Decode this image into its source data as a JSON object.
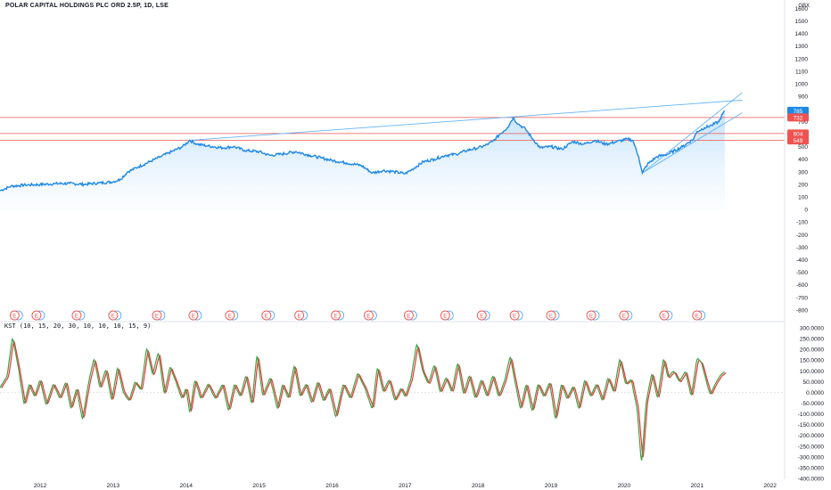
{
  "header": {
    "title": "POLAR CAPITAL HOLDINGS PLC ORD 2.5P, 1D, LSE",
    "currency": "GBX"
  },
  "indicator": {
    "label": "KST (10, 15, 20, 30, 10, 10, 10, 15, 9)"
  },
  "colors": {
    "price_line": "#1e88e5",
    "area_fill_top": "#bbdefb",
    "resistance_lines": "#ef5350",
    "trend_lines": "#64b5f6",
    "kst_line": "#43a047",
    "kst_signal": "#e53935",
    "earnings_badge": "#ef5350",
    "earnings_badge_alt": "#42a5f5",
    "axis_text": "#131722"
  },
  "chart_data": [
    {
      "type": "line",
      "name": "price",
      "x_axis": {
        "tick_labels": [
          "2012",
          "2013",
          "2014",
          "2015",
          "2016",
          "2017",
          "2018",
          "2019",
          "2020",
          "2021",
          "2022"
        ],
        "range": [
          2011.45,
          2022.2
        ]
      },
      "y_axis": {
        "ticks": [
          -800,
          -700,
          -600,
          -500,
          -400,
          -300,
          -200,
          -100,
          0,
          100,
          200,
          300,
          400,
          500,
          600,
          700,
          800,
          900,
          1000,
          1100,
          1200,
          1300,
          1400,
          1500,
          1600
        ],
        "range": [
          -850,
          1610
        ]
      },
      "points": [
        [
          2011.45,
          150
        ],
        [
          2011.6,
          185
        ],
        [
          2011.8,
          195
        ],
        [
          2012.0,
          198
        ],
        [
          2012.2,
          205
        ],
        [
          2012.4,
          207
        ],
        [
          2012.6,
          200
        ],
        [
          2012.8,
          210
        ],
        [
          2013.0,
          220
        ],
        [
          2013.1,
          240
        ],
        [
          2013.2,
          300
        ],
        [
          2013.35,
          340
        ],
        [
          2013.5,
          380
        ],
        [
          2013.65,
          420
        ],
        [
          2013.8,
          460
        ],
        [
          2013.95,
          500
        ],
        [
          2014.05,
          550
        ],
        [
          2014.15,
          520
        ],
        [
          2014.3,
          505
        ],
        [
          2014.5,
          490
        ],
        [
          2014.65,
          500
        ],
        [
          2014.8,
          470
        ],
        [
          2015.0,
          460
        ],
        [
          2015.15,
          430
        ],
        [
          2015.3,
          440
        ],
        [
          2015.5,
          460
        ],
        [
          2015.7,
          430
        ],
        [
          2015.85,
          410
        ],
        [
          2016.0,
          390
        ],
        [
          2016.2,
          370
        ],
        [
          2016.4,
          350
        ],
        [
          2016.55,
          290
        ],
        [
          2016.7,
          310
        ],
        [
          2016.85,
          300
        ],
        [
          2017.0,
          285
        ],
        [
          2017.1,
          320
        ],
        [
          2017.25,
          380
        ],
        [
          2017.4,
          400
        ],
        [
          2017.55,
          430
        ],
        [
          2017.7,
          440
        ],
        [
          2017.85,
          470
        ],
        [
          2018.0,
          490
        ],
        [
          2018.1,
          510
        ],
        [
          2018.2,
          540
        ],
        [
          2018.3,
          600
        ],
        [
          2018.4,
          650
        ],
        [
          2018.48,
          730
        ],
        [
          2018.55,
          680
        ],
        [
          2018.65,
          640
        ],
        [
          2018.75,
          560
        ],
        [
          2018.85,
          490
        ],
        [
          2019.0,
          500
        ],
        [
          2019.15,
          480
        ],
        [
          2019.3,
          540
        ],
        [
          2019.45,
          520
        ],
        [
          2019.6,
          550
        ],
        [
          2019.75,
          520
        ],
        [
          2019.9,
          540
        ],
        [
          2020.05,
          560
        ],
        [
          2020.12,
          550
        ],
        [
          2020.2,
          420
        ],
        [
          2020.25,
          290
        ],
        [
          2020.32,
          360
        ],
        [
          2020.45,
          420
        ],
        [
          2020.6,
          440
        ],
        [
          2020.8,
          500
        ],
        [
          2020.95,
          560
        ],
        [
          2021.0,
          620
        ],
        [
          2021.1,
          650
        ],
        [
          2021.2,
          670
        ],
        [
          2021.3,
          700
        ],
        [
          2021.35,
          760
        ],
        [
          2021.38,
          785
        ]
      ],
      "level_labels": [
        {
          "value": 785,
          "label": "785",
          "kind": "last"
        },
        {
          "value": 732,
          "label": "732",
          "kind": "resistance"
        },
        {
          "value": 604,
          "label": "604",
          "kind": "resistance"
        },
        {
          "value": 549,
          "label": "549",
          "kind": "resistance"
        }
      ],
      "horizontal_levels": [
        732,
        604,
        549
      ],
      "trend_lines": [
        {
          "from": [
            2014.05,
            550
          ],
          "to": [
            2021.62,
            870
          ]
        },
        {
          "from": [
            2020.25,
            290
          ],
          "to": [
            2021.62,
            930
          ]
        },
        {
          "from": [
            2020.25,
            290
          ],
          "to": [
            2021.62,
            770
          ]
        }
      ],
      "earnings_markers": {
        "label": "E",
        "x": [
          2011.65,
          2011.95,
          2012.5,
          2013.0,
          2013.6,
          2014.1,
          2014.6,
          2015.1,
          2015.55,
          2016.05,
          2016.5,
          2017.05,
          2017.55,
          2018.05,
          2018.5,
          2019.0,
          2019.55,
          2020.0,
          2020.55,
          2021.0
        ]
      }
    },
    {
      "type": "line",
      "name": "KST",
      "y_axis": {
        "ticks": [
          "300.0000",
          "250.0000",
          "200.0000",
          "150.0000",
          "100.0000",
          "50.0000",
          "0.0000",
          "-50.0000",
          "-100.0000",
          "-150.0000",
          "-200.0000",
          "-250.0000",
          "-300.0000",
          "-350.0000",
          "-400.0000"
        ],
        "range": [
          -400,
          300
        ]
      },
      "series": [
        {
          "name": "KST",
          "color": "#43a047"
        },
        {
          "name": "Signal",
          "color": "#e53935"
        }
      ],
      "points": [
        [
          2011.45,
          20
        ],
        [
          2011.55,
          80
        ],
        [
          2011.62,
          260
        ],
        [
          2011.7,
          120
        ],
        [
          2011.78,
          -60
        ],
        [
          2011.85,
          40
        ],
        [
          2011.92,
          -20
        ],
        [
          2012.0,
          60
        ],
        [
          2012.08,
          -60
        ],
        [
          2012.18,
          40
        ],
        [
          2012.27,
          -30
        ],
        [
          2012.35,
          50
        ],
        [
          2012.42,
          -80
        ],
        [
          2012.5,
          20
        ],
        [
          2012.58,
          -130
        ],
        [
          2012.66,
          40
        ],
        [
          2012.74,
          160
        ],
        [
          2012.82,
          20
        ],
        [
          2012.9,
          110
        ],
        [
          2012.98,
          -40
        ],
        [
          2013.06,
          120
        ],
        [
          2013.14,
          0
        ],
        [
          2013.22,
          -40
        ],
        [
          2013.3,
          50
        ],
        [
          2013.38,
          10
        ],
        [
          2013.46,
          210
        ],
        [
          2013.54,
          80
        ],
        [
          2013.62,
          190
        ],
        [
          2013.7,
          -10
        ],
        [
          2013.78,
          120
        ],
        [
          2013.86,
          50
        ],
        [
          2013.94,
          -30
        ],
        [
          2014.0,
          20
        ],
        [
          2014.05,
          -100
        ],
        [
          2014.12,
          60
        ],
        [
          2014.2,
          -30
        ],
        [
          2014.3,
          40
        ],
        [
          2014.4,
          -30
        ],
        [
          2014.5,
          40
        ],
        [
          2014.58,
          -90
        ],
        [
          2014.66,
          40
        ],
        [
          2014.74,
          -20
        ],
        [
          2014.82,
          80
        ],
        [
          2014.9,
          -60
        ],
        [
          2014.97,
          180
        ],
        [
          2015.05,
          -20
        ],
        [
          2015.15,
          70
        ],
        [
          2015.25,
          -80
        ],
        [
          2015.32,
          40
        ],
        [
          2015.4,
          -30
        ],
        [
          2015.48,
          130
        ],
        [
          2015.56,
          -20
        ],
        [
          2015.64,
          40
        ],
        [
          2015.72,
          -50
        ],
        [
          2015.8,
          50
        ],
        [
          2015.88,
          -40
        ],
        [
          2015.96,
          20
        ],
        [
          2016.05,
          -120
        ],
        [
          2016.15,
          40
        ],
        [
          2016.25,
          -30
        ],
        [
          2016.35,
          90
        ],
        [
          2016.45,
          20
        ],
        [
          2016.55,
          -80
        ],
        [
          2016.62,
          120
        ],
        [
          2016.7,
          0
        ],
        [
          2016.78,
          60
        ],
        [
          2016.86,
          -40
        ],
        [
          2016.94,
          20
        ],
        [
          2017.0,
          -20
        ],
        [
          2017.08,
          60
        ],
        [
          2017.16,
          230
        ],
        [
          2017.24,
          100
        ],
        [
          2017.32,
          40
        ],
        [
          2017.4,
          130
        ],
        [
          2017.48,
          0
        ],
        [
          2017.56,
          70
        ],
        [
          2017.64,
          0
        ],
        [
          2017.72,
          140
        ],
        [
          2017.8,
          -10
        ],
        [
          2017.88,
          80
        ],
        [
          2017.96,
          -30
        ],
        [
          2018.04,
          60
        ],
        [
          2018.12,
          -20
        ],
        [
          2018.2,
          80
        ],
        [
          2018.28,
          -20
        ],
        [
          2018.36,
          50
        ],
        [
          2018.44,
          170
        ],
        [
          2018.5,
          60
        ],
        [
          2018.58,
          -80
        ],
        [
          2018.66,
          40
        ],
        [
          2018.74,
          -90
        ],
        [
          2018.82,
          40
        ],
        [
          2018.9,
          -20
        ],
        [
          2018.98,
          50
        ],
        [
          2019.06,
          -130
        ],
        [
          2019.14,
          40
        ],
        [
          2019.22,
          -30
        ],
        [
          2019.3,
          30
        ],
        [
          2019.38,
          -80
        ],
        [
          2019.46,
          60
        ],
        [
          2019.54,
          -20
        ],
        [
          2019.62,
          40
        ],
        [
          2019.7,
          -40
        ],
        [
          2019.78,
          70
        ],
        [
          2019.86,
          0
        ],
        [
          2019.94,
          160
        ],
        [
          2020.02,
          40
        ],
        [
          2020.1,
          60
        ],
        [
          2020.18,
          -80
        ],
        [
          2020.24,
          -340
        ],
        [
          2020.3,
          -50
        ],
        [
          2020.38,
          90
        ],
        [
          2020.46,
          -30
        ],
        [
          2020.54,
          160
        ],
        [
          2020.6,
          70
        ],
        [
          2020.68,
          100
        ],
        [
          2020.76,
          50
        ],
        [
          2020.84,
          100
        ],
        [
          2020.92,
          -20
        ],
        [
          2021.0,
          160
        ],
        [
          2021.06,
          140
        ],
        [
          2021.12,
          60
        ],
        [
          2021.18,
          -10
        ],
        [
          2021.25,
          40
        ],
        [
          2021.32,
          80
        ],
        [
          2021.38,
          95
        ]
      ]
    }
  ]
}
